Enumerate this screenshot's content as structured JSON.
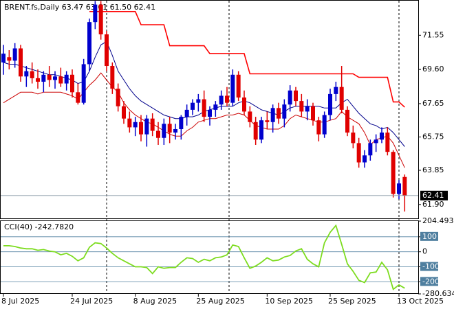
{
  "chart_data": [
    {
      "type": "candlestick",
      "title": "BRENT.fs,Daily 63.47 63.61 61.50 62.41",
      "categories": [
        "8 Jul 2025",
        null,
        null,
        null,
        null,
        null,
        null,
        null,
        null,
        null,
        null,
        null,
        "24 Jul 2025",
        null,
        null,
        null,
        null,
        null,
        null,
        null,
        null,
        null,
        null,
        "8 Aug 2025",
        null,
        null,
        null,
        null,
        null,
        null,
        null,
        null,
        null,
        null,
        "25 Aug 2025",
        null,
        null,
        null,
        null,
        null,
        null,
        null,
        null,
        null,
        null,
        null,
        "10 Sep 2025",
        null,
        null,
        null,
        null,
        null,
        null,
        null,
        null,
        null,
        null,
        "25 Sep 2025",
        null,
        null,
        null,
        null,
        null,
        null,
        null,
        null,
        null,
        null,
        null,
        "13 Oct 2025",
        null
      ],
      "open": [
        70.0,
        70.3,
        70.1,
        70.8,
        69.2,
        69.5,
        69.1,
        68.9,
        69.3,
        69.0,
        69.2,
        68.8,
        69.3,
        68.3,
        67.7,
        69.9,
        72.3,
        73.3,
        71.6,
        69.8,
        68.5,
        67.5,
        66.8,
        66.3,
        66.6,
        65.9,
        66.8,
        66.1,
        65.7,
        66.5,
        66.0,
        66.2,
        66.9,
        67.3,
        67.7,
        67.9,
        66.9,
        67.3,
        67.6,
        68.1,
        67.7,
        69.3,
        68.0,
        67.2,
        66.6,
        65.6,
        66.7,
        66.6,
        67.4,
        66.8,
        67.6,
        68.4,
        67.8,
        67.2,
        67.5,
        66.7,
        65.9,
        67.0,
        68.2,
        68.6,
        67.3,
        66.0,
        65.4,
        64.3,
        64.7,
        65.4,
        65.6,
        66.0,
        64.9,
        62.5,
        63.47
      ],
      "high": [
        71.0,
        70.7,
        71.1,
        71.0,
        69.8,
        70.0,
        69.6,
        69.5,
        69.8,
        69.5,
        69.7,
        69.5,
        69.6,
        68.8,
        70.2,
        72.5,
        73.5,
        73.5,
        71.8,
        70.0,
        68.8,
        67.8,
        67.2,
        66.9,
        67.0,
        67.0,
        67.1,
        66.6,
        66.8,
        66.9,
        66.5,
        67.0,
        67.6,
        67.9,
        68.2,
        68.4,
        67.5,
        67.8,
        68.4,
        68.6,
        69.6,
        69.5,
        68.4,
        67.5,
        66.9,
        66.9,
        67.2,
        67.6,
        67.7,
        67.9,
        68.7,
        68.6,
        68.2,
        67.9,
        67.7,
        66.9,
        67.2,
        68.5,
        68.9,
        69.8,
        67.5,
        66.4,
        65.7,
        65.0,
        65.6,
        65.9,
        66.3,
        66.3,
        65.0,
        63.3,
        63.61
      ],
      "low": [
        69.3,
        69.6,
        69.7,
        68.9,
        68.6,
        68.8,
        68.5,
        68.3,
        68.6,
        68.5,
        68.6,
        68.4,
        68.0,
        67.6,
        67.6,
        69.5,
        71.9,
        71.3,
        69.5,
        68.2,
        67.2,
        66.5,
        66.0,
        65.8,
        65.5,
        65.2,
        65.8,
        65.3,
        65.3,
        65.4,
        65.6,
        65.6,
        66.4,
        67.0,
        67.2,
        66.6,
        66.4,
        66.9,
        67.3,
        67.5,
        67.5,
        67.8,
        67.0,
        66.3,
        65.3,
        65.4,
        66.2,
        66.0,
        66.5,
        66.3,
        67.2,
        67.5,
        66.9,
        66.7,
        66.4,
        65.5,
        65.7,
        66.7,
        67.8,
        67.1,
        65.8,
        65.1,
        64.0,
        64.0,
        64.4,
        64.9,
        65.4,
        64.7,
        62.3,
        62.2,
        61.5
      ],
      "close": [
        70.5,
        70.1,
        70.8,
        69.2,
        69.5,
        69.1,
        68.9,
        69.3,
        69.0,
        69.2,
        68.8,
        69.3,
        68.3,
        67.7,
        69.9,
        72.3,
        73.3,
        71.6,
        69.8,
        68.5,
        67.5,
        66.8,
        66.3,
        66.6,
        65.9,
        66.8,
        66.1,
        65.7,
        66.5,
        66.0,
        66.2,
        66.9,
        67.3,
        67.7,
        67.9,
        66.9,
        67.3,
        67.6,
        68.1,
        67.7,
        69.3,
        68.0,
        67.2,
        66.6,
        65.6,
        66.7,
        66.6,
        67.4,
        66.8,
        67.6,
        68.4,
        67.8,
        67.2,
        67.5,
        66.7,
        65.9,
        67.0,
        68.2,
        68.6,
        67.3,
        66.0,
        65.4,
        64.3,
        64.7,
        65.4,
        65.6,
        66.0,
        64.9,
        62.5,
        63.1,
        62.41
      ],
      "up_color": "#0000cd",
      "down_color": "#e00000",
      "lines": [
        {
          "color": "#00008b",
          "values": [
            70.0,
            69.9,
            69.9,
            69.8,
            69.7,
            69.6,
            69.5,
            69.4,
            69.3,
            69.3,
            69.2,
            69.1,
            69.0,
            68.8,
            68.9,
            69.5,
            70.3,
            71.0,
            71.2,
            70.4,
            69.5,
            69.0,
            68.5,
            68.1,
            67.8,
            67.6,
            67.4,
            67.2,
            67.0,
            66.9,
            66.8,
            66.8,
            66.9,
            66.9,
            67.0,
            67.2,
            67.3,
            67.4,
            67.5,
            67.5,
            67.5,
            67.7,
            67.8,
            67.7,
            67.5,
            67.3,
            67.2,
            67.1,
            67.0,
            67.2,
            67.4,
            67.5,
            67.5,
            67.5,
            67.5,
            67.5,
            67.4,
            67.4,
            67.4,
            67.7,
            67.9,
            67.5,
            67.1,
            66.8,
            66.5,
            66.4,
            66.2,
            66.3,
            66.0,
            65.6,
            65.2
          ]
        },
        {
          "color": "#cc0000",
          "values": [
            67.7,
            67.9,
            68.1,
            68.3,
            68.3,
            68.3,
            68.2,
            68.3,
            68.3,
            68.3,
            68.3,
            68.2,
            68.1,
            67.9,
            68.3,
            68.7,
            69.0,
            69.4,
            69.0,
            68.6,
            68.3,
            67.7,
            67.3,
            67.0,
            66.8,
            66.6,
            66.5,
            66.3,
            66.1,
            65.9,
            65.8,
            65.8,
            66.1,
            66.3,
            66.6,
            66.7,
            66.8,
            66.8,
            66.9,
            67.0,
            67.0,
            67.1,
            67.0,
            66.7,
            66.4,
            66.3,
            66.2,
            66.2,
            66.2,
            66.4,
            66.8,
            67.0,
            66.9,
            66.8,
            66.7,
            66.6,
            66.6,
            66.7,
            66.8,
            67.2,
            66.9,
            66.7,
            66.5,
            66.0,
            65.3,
            65.6,
            65.7,
            65.8,
            65.4,
            64.7,
            64.0
          ]
        },
        {
          "color": "#ff0000",
          "values": [
            null,
            null,
            null,
            null,
            null,
            null,
            null,
            null,
            null,
            null,
            null,
            null,
            null,
            null,
            null,
            72.9,
            72.9,
            72.9,
            72.9,
            72.9,
            72.9,
            72.9,
            72.9,
            72.9,
            72.15,
            72.15,
            72.15,
            72.15,
            72.15,
            70.95,
            70.95,
            70.95,
            70.95,
            70.95,
            70.95,
            70.95,
            70.5,
            70.5,
            70.5,
            70.5,
            70.5,
            70.5,
            70.5,
            69.35,
            69.35,
            69.35,
            69.35,
            69.35,
            69.35,
            69.35,
            69.35,
            69.35,
            69.35,
            69.35,
            69.35,
            69.35,
            69.35,
            69.35,
            69.35,
            69.35,
            69.35,
            69.35,
            69.15,
            69.15,
            69.15,
            69.15,
            69.15,
            69.15,
            67.75,
            67.75,
            67.45
          ]
        }
      ],
      "ylim": [
        61.11,
        73.52
      ],
      "yticks": [
        71.55,
        {
          "value": 69.6,
          "label": "69.60"
        },
        67.65,
        65.75,
        63.85,
        {
          "value": 61.9,
          "label": "61.90"
        }
      ]
    },
    {
      "type": "line",
      "title": "CCI(40) -242.7820",
      "color": "#7ddc1f",
      "values": [
        40,
        40,
        35,
        25,
        20,
        20,
        10,
        15,
        5,
        0,
        -20,
        -10,
        -30,
        -60,
        -40,
        30,
        60,
        55,
        25,
        -10,
        -40,
        -60,
        -80,
        -100,
        -100,
        -105,
        -145,
        -100,
        -110,
        -105,
        -105,
        -70,
        -40,
        -45,
        -70,
        -50,
        -60,
        -40,
        -35,
        -20,
        45,
        35,
        -40,
        -110,
        -95,
        -70,
        -40,
        -60,
        -55,
        -35,
        -25,
        5,
        20,
        -50,
        -80,
        -100,
        60,
        130,
        175,
        50,
        -80,
        -130,
        -190,
        -205,
        -140,
        -135,
        -70,
        -120,
        -250,
        -220,
        -242.782
      ],
      "ylim": [
        -280.634,
        204.493
      ],
      "yticks": [
        204.493,
        100,
        0,
        -100,
        -200,
        -280.634
      ]
    }
  ]
}
